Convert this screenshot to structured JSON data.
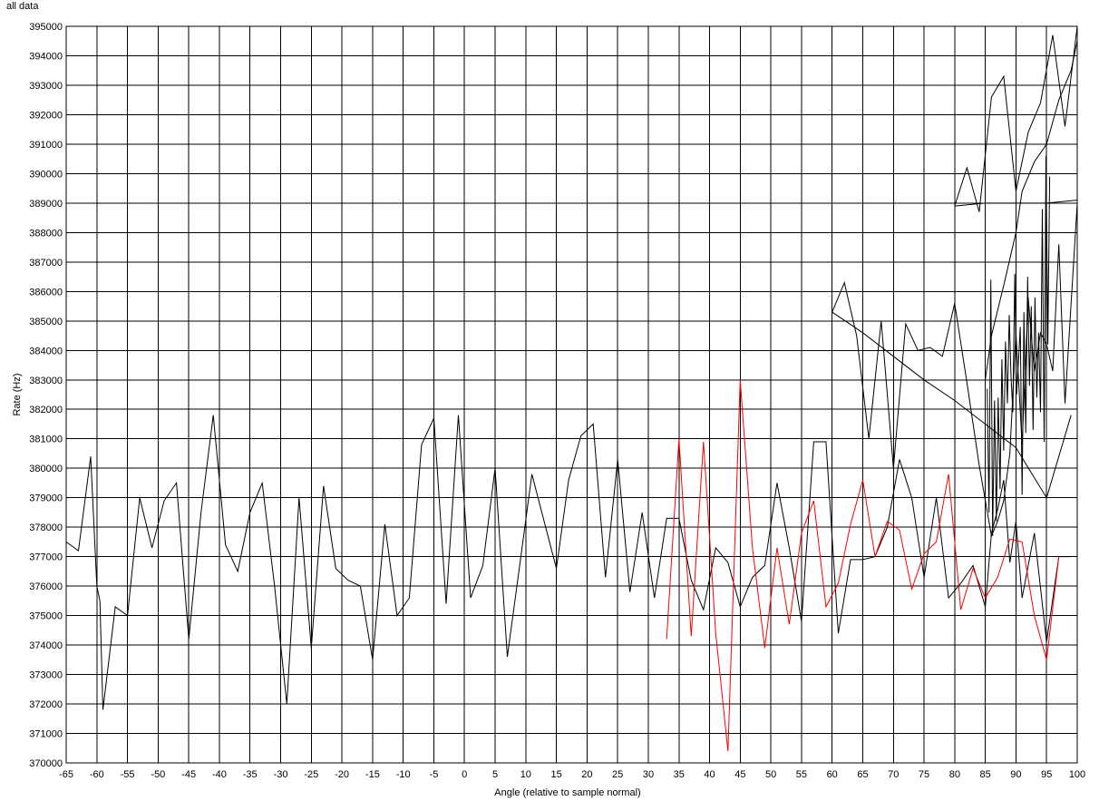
{
  "chart_data": {
    "type": "line",
    "title": "all data",
    "xlabel": "Angle (relative to sample normal)",
    "ylabel": "Rate (Hz)",
    "xlim": [
      -65,
      100
    ],
    "ylim": [
      370000,
      395000
    ],
    "x_ticks": [
      -65,
      -60,
      -55,
      -50,
      -45,
      -40,
      -35,
      -30,
      -25,
      -20,
      -15,
      -10,
      -5,
      0,
      5,
      10,
      15,
      20,
      25,
      30,
      35,
      40,
      45,
      50,
      55,
      60,
      65,
      70,
      75,
      80,
      85,
      90,
      95,
      100
    ],
    "y_ticks": [
      370000,
      371000,
      372000,
      373000,
      374000,
      375000,
      376000,
      377000,
      378000,
      379000,
      380000,
      381000,
      382000,
      383000,
      384000,
      385000,
      386000,
      387000,
      388000,
      389000,
      390000,
      391000,
      392000,
      393000,
      394000,
      395000
    ],
    "grid": true,
    "series": [
      {
        "color": "#000000",
        "points": [
          [
            -65,
            377500
          ],
          [
            -63,
            377200
          ],
          [
            -61,
            380400
          ],
          [
            -60,
            376000
          ],
          [
            -59.5,
            375500
          ],
          [
            -59,
            371800
          ],
          [
            -57,
            375300
          ],
          [
            -55,
            375000
          ],
          [
            -53,
            379000
          ],
          [
            -51,
            377300
          ],
          [
            -49,
            378900
          ],
          [
            -47,
            379500
          ],
          [
            -45,
            374200
          ],
          [
            -43,
            378500
          ],
          [
            -41,
            381800
          ],
          [
            -39,
            377400
          ],
          [
            -37,
            376500
          ],
          [
            -35,
            378500
          ],
          [
            -33,
            379500
          ],
          [
            -31,
            376000
          ],
          [
            -29,
            372000
          ],
          [
            -27,
            379000
          ],
          [
            -25,
            373900
          ],
          [
            -23,
            379400
          ],
          [
            -21,
            376600
          ],
          [
            -19,
            376200
          ],
          [
            -17,
            376000
          ],
          [
            -15,
            373500
          ],
          [
            -13,
            378100
          ],
          [
            -11,
            375000
          ],
          [
            -9,
            375600
          ],
          [
            -7,
            380800
          ],
          [
            -5,
            381700
          ],
          [
            -3,
            375400
          ],
          [
            -1,
            381800
          ],
          [
            1,
            375600
          ],
          [
            3,
            376700
          ],
          [
            5,
            380000
          ],
          [
            7,
            373600
          ],
          [
            9,
            376700
          ],
          [
            11,
            379800
          ],
          [
            13,
            378200
          ],
          [
            15,
            376600
          ],
          [
            17,
            379600
          ],
          [
            19,
            381100
          ],
          [
            21,
            381500
          ],
          [
            23,
            376300
          ],
          [
            25,
            380300
          ],
          [
            27,
            375800
          ],
          [
            29,
            378500
          ],
          [
            31,
            375600
          ],
          [
            33,
            378300
          ],
          [
            35,
            378300
          ],
          [
            37,
            376200
          ],
          [
            39,
            375200
          ],
          [
            41,
            377300
          ],
          [
            43,
            376800
          ],
          [
            45,
            375300
          ],
          [
            47,
            376300
          ],
          [
            49,
            376700
          ],
          [
            51,
            379500
          ],
          [
            53,
            377300
          ],
          [
            55,
            374800
          ],
          [
            57,
            380900
          ],
          [
            59,
            380900
          ],
          [
            61,
            374400
          ],
          [
            63,
            376900
          ],
          [
            65,
            376900
          ],
          [
            67,
            377000
          ],
          [
            69,
            378000
          ],
          [
            71,
            380300
          ],
          [
            73,
            379000
          ],
          [
            75,
            376300
          ],
          [
            77,
            379000
          ],
          [
            79,
            375600
          ],
          [
            81,
            376100
          ],
          [
            83,
            376700
          ],
          [
            85,
            375300
          ],
          [
            86,
            377800
          ],
          [
            87,
            378600
          ],
          [
            88,
            379600
          ],
          [
            89,
            376800
          ],
          [
            90,
            378200
          ],
          [
            91,
            375600
          ],
          [
            93,
            377800
          ],
          [
            95,
            374100
          ],
          [
            97,
            377000
          ],
          [
            99,
            377000
          ]
        ]
      },
      {
        "color": "#000000",
        "points": [
          [
            60,
            385300
          ],
          [
            62,
            386300
          ],
          [
            64,
            384500
          ],
          [
            66,
            381000
          ],
          [
            68,
            385000
          ],
          [
            70,
            380000
          ],
          [
            72,
            384900
          ],
          [
            74,
            384000
          ],
          [
            76,
            384100
          ],
          [
            78,
            383800
          ],
          [
            80,
            385600
          ],
          [
            82,
            382900
          ],
          [
            84,
            380100
          ],
          [
            86,
            377700
          ],
          [
            87,
            378200
          ],
          [
            88,
            378900
          ],
          [
            89,
            380500
          ],
          [
            90,
            384600
          ],
          [
            91,
            380800
          ],
          [
            92,
            385800
          ],
          [
            93,
            383300
          ],
          [
            94,
            384600
          ],
          [
            95,
            384200
          ],
          [
            96,
            383300
          ],
          [
            97,
            387600
          ],
          [
            98,
            382200
          ],
          [
            100,
            389000
          ]
        ]
      },
      {
        "color": "#000000",
        "points": [
          [
            60,
            385300
          ],
          [
            65,
            384600
          ],
          [
            70,
            383800
          ],
          [
            75,
            383000
          ],
          [
            80,
            382300
          ],
          [
            85,
            381500
          ],
          [
            90,
            380700
          ],
          [
            95,
            379000
          ],
          [
            99,
            381800
          ]
        ]
      },
      {
        "color": "#000000",
        "points": [
          [
            80,
            388900
          ],
          [
            82,
            390200
          ],
          [
            84,
            388700
          ],
          [
            86,
            392600
          ],
          [
            88,
            393300
          ],
          [
            90,
            389400
          ],
          [
            92,
            391400
          ],
          [
            94,
            392400
          ],
          [
            96,
            394700
          ],
          [
            98,
            391600
          ],
          [
            100,
            395000
          ]
        ]
      },
      {
        "color": "#000000",
        "points": [
          [
            80,
            388900
          ],
          [
            85,
            389000
          ],
          [
            90,
            389000
          ],
          [
            95,
            389000
          ],
          [
            100,
            389100
          ]
        ]
      },
      {
        "color": "#000000",
        "points": [
          [
            85.3,
            382700
          ],
          [
            85.6,
            378500
          ],
          [
            85.9,
            386400
          ],
          [
            86.2,
            377700
          ],
          [
            86.5,
            382300
          ],
          [
            86.8,
            378200
          ],
          [
            87.1,
            382400
          ],
          [
            87.4,
            379300
          ],
          [
            87.7,
            383700
          ],
          [
            88,
            380600
          ],
          [
            88.3,
            384300
          ],
          [
            88.6,
            382200
          ],
          [
            88.9,
            385200
          ],
          [
            89.2,
            383100
          ],
          [
            89.5,
            381900
          ],
          [
            89.8,
            386600
          ],
          [
            90.1,
            382500
          ],
          [
            90.4,
            383600
          ],
          [
            90.7,
            384800
          ],
          [
            91,
            379100
          ],
          [
            91.3,
            385300
          ],
          [
            91.6,
            381200
          ],
          [
            91.9,
            386500
          ],
          [
            92.2,
            382800
          ],
          [
            92.5,
            385500
          ],
          [
            92.8,
            381300
          ],
          [
            93.1,
            385800
          ],
          [
            93.4,
            382400
          ],
          [
            93.7,
            384600
          ],
          [
            94,
            381900
          ],
          [
            94.3,
            388800
          ],
          [
            94.6,
            380900
          ],
          [
            94.9,
            390600
          ],
          [
            95.2,
            384200
          ],
          [
            95.5,
            389900
          ]
        ]
      },
      {
        "color": "#000000",
        "points": [
          [
            85,
            383000
          ],
          [
            86,
            384500
          ],
          [
            88,
            386200
          ],
          [
            90,
            388000
          ],
          [
            91,
            389400
          ],
          [
            93,
            390400
          ],
          [
            95,
            391000
          ],
          [
            97,
            392500
          ],
          [
            99,
            393500
          ],
          [
            100,
            394500
          ]
        ]
      },
      {
        "color": "#ff0000",
        "points": [
          [
            33,
            374200
          ],
          [
            35,
            381000
          ],
          [
            37,
            374300
          ],
          [
            39,
            380900
          ],
          [
            41,
            374400
          ],
          [
            43,
            370400
          ],
          [
            45,
            383000
          ],
          [
            47,
            377300
          ],
          [
            49,
            373900
          ],
          [
            51,
            377300
          ],
          [
            53,
            374700
          ],
          [
            55,
            377800
          ],
          [
            57,
            378900
          ],
          [
            59,
            375300
          ],
          [
            61,
            376100
          ],
          [
            63,
            378100
          ],
          [
            65,
            379600
          ],
          [
            67,
            377000
          ],
          [
            69,
            378200
          ],
          [
            71,
            377900
          ],
          [
            73,
            375900
          ],
          [
            75,
            377100
          ],
          [
            77,
            377500
          ],
          [
            79,
            379800
          ],
          [
            81,
            375200
          ],
          [
            83,
            376600
          ],
          [
            85,
            375600
          ],
          [
            87,
            376300
          ],
          [
            89,
            377600
          ],
          [
            91,
            377500
          ],
          [
            93,
            375000
          ],
          [
            95,
            373500
          ],
          [
            97,
            377000
          ]
        ]
      }
    ]
  }
}
